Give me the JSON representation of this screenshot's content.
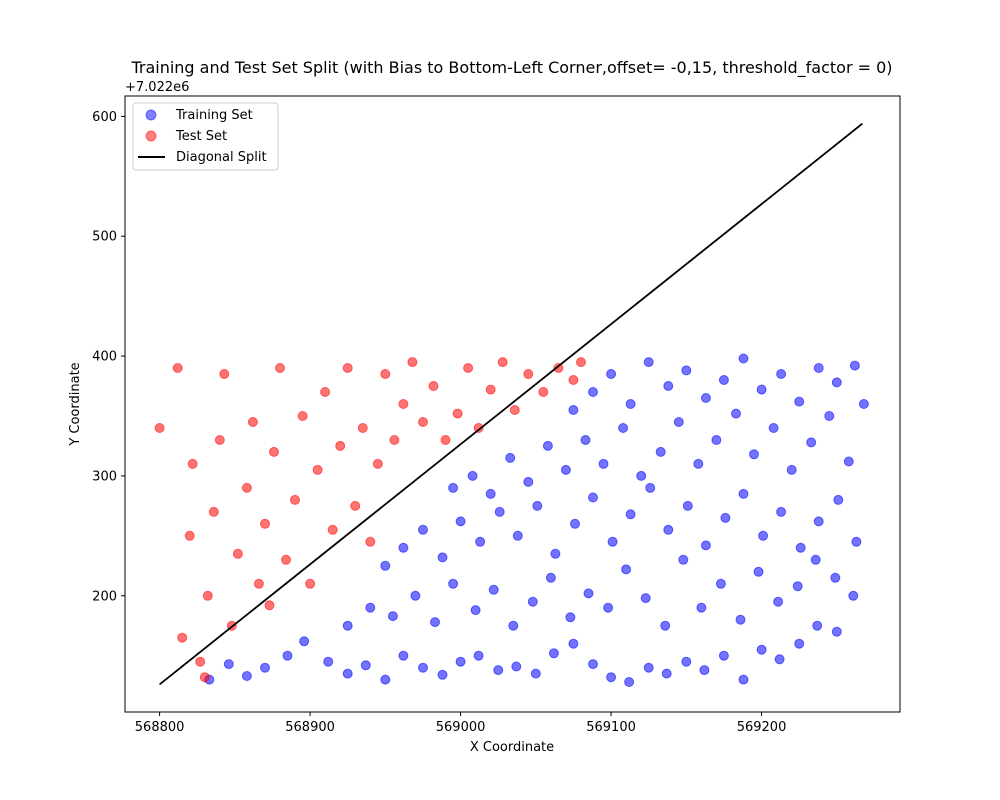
{
  "chart_data": {
    "type": "scatter",
    "title": "Training and Test Set Split (with Bias to Bottom-Left Corner,offset= -0,15, threshold_factor = 0)",
    "xlabel": "X Coordinate",
    "ylabel": "Y Coordinate",
    "y_offset_label": "+7.022e6",
    "y_offset": 7022000,
    "xlim": [
      568777,
      569292
    ],
    "ylim": [
      7022103,
      7022617
    ],
    "x_ticks": [
      568800,
      568900,
      569000,
      569100,
      569200
    ],
    "x_tick_labels": [
      "568800",
      "568900",
      "569000",
      "569100",
      "569200"
    ],
    "y_ticks": [
      200,
      300,
      400,
      500,
      600
    ],
    "y_tick_labels": [
      "200",
      "300",
      "400",
      "500",
      "600"
    ],
    "grid": false,
    "legend_position": "top-left",
    "colors": {
      "training": "#0000ff",
      "test": "#ff0000",
      "diagonal": "#000000"
    },
    "series": [
      {
        "name": "Training Set",
        "kind": "scatter",
        "points": [
          [
            568833,
            7022130
          ],
          [
            568846,
            7022143
          ],
          [
            568858,
            7022133
          ],
          [
            568870,
            7022140
          ],
          [
            568885,
            7022150
          ],
          [
            568896,
            7022162
          ],
          [
            568912,
            7022145
          ],
          [
            568925,
            7022135
          ],
          [
            568937,
            7022142
          ],
          [
            568950,
            7022130
          ],
          [
            568962,
            7022150
          ],
          [
            568975,
            7022140
          ],
          [
            568988,
            7022134
          ],
          [
            569000,
            7022145
          ],
          [
            569012,
            7022150
          ],
          [
            569025,
            7022138
          ],
          [
            569037,
            7022141
          ],
          [
            569050,
            7022135
          ],
          [
            569062,
            7022152
          ],
          [
            569075,
            7022160
          ],
          [
            569088,
            7022143
          ],
          [
            569100,
            7022132
          ],
          [
            569112,
            7022128
          ],
          [
            569125,
            7022140
          ],
          [
            569137,
            7022135
          ],
          [
            569150,
            7022145
          ],
          [
            569162,
            7022138
          ],
          [
            569175,
            7022150
          ],
          [
            569188,
            7022130
          ],
          [
            569200,
            7022155
          ],
          [
            569212,
            7022147
          ],
          [
            569225,
            7022160
          ],
          [
            569237,
            7022175
          ],
          [
            569250,
            7022170
          ],
          [
            568925,
            7022175
          ],
          [
            568940,
            7022190
          ],
          [
            568955,
            7022183
          ],
          [
            568970,
            7022200
          ],
          [
            568983,
            7022178
          ],
          [
            568995,
            7022210
          ],
          [
            569010,
            7022188
          ],
          [
            569022,
            7022205
          ],
          [
            569035,
            7022175
          ],
          [
            569048,
            7022195
          ],
          [
            569060,
            7022215
          ],
          [
            569073,
            7022182
          ],
          [
            569085,
            7022202
          ],
          [
            569098,
            7022190
          ],
          [
            569110,
            7022222
          ],
          [
            569123,
            7022198
          ],
          [
            569136,
            7022175
          ],
          [
            569148,
            7022230
          ],
          [
            569160,
            7022190
          ],
          [
            569173,
            7022210
          ],
          [
            569186,
            7022180
          ],
          [
            569198,
            7022220
          ],
          [
            569211,
            7022195
          ],
          [
            569224,
            7022208
          ],
          [
            569236,
            7022230
          ],
          [
            569249,
            7022215
          ],
          [
            569261,
            7022200
          ],
          [
            568950,
            7022225
          ],
          [
            568962,
            7022240
          ],
          [
            568975,
            7022255
          ],
          [
            568988,
            7022232
          ],
          [
            569000,
            7022262
          ],
          [
            569013,
            7022245
          ],
          [
            569026,
            7022270
          ],
          [
            569038,
            7022250
          ],
          [
            569051,
            7022275
          ],
          [
            569063,
            7022235
          ],
          [
            569076,
            7022260
          ],
          [
            569088,
            7022282
          ],
          [
            569101,
            7022245
          ],
          [
            569113,
            7022268
          ],
          [
            569126,
            7022290
          ],
          [
            569138,
            7022255
          ],
          [
            569151,
            7022275
          ],
          [
            569163,
            7022242
          ],
          [
            569176,
            7022265
          ],
          [
            569188,
            7022285
          ],
          [
            569201,
            7022250
          ],
          [
            569213,
            7022270
          ],
          [
            569226,
            7022240
          ],
          [
            569238,
            7022262
          ],
          [
            569251,
            7022280
          ],
          [
            569263,
            7022245
          ],
          [
            568995,
            7022290
          ],
          [
            569008,
            7022300
          ],
          [
            569020,
            7022285
          ],
          [
            569033,
            7022315
          ],
          [
            569045,
            7022295
          ],
          [
            569058,
            7022325
          ],
          [
            569070,
            7022305
          ],
          [
            569083,
            7022330
          ],
          [
            569095,
            7022310
          ],
          [
            569108,
            7022340
          ],
          [
            569120,
            7022300
          ],
          [
            569133,
            7022320
          ],
          [
            569145,
            7022345
          ],
          [
            569158,
            7022310
          ],
          [
            569170,
            7022330
          ],
          [
            569183,
            7022352
          ],
          [
            569195,
            7022318
          ],
          [
            569208,
            7022340
          ],
          [
            569220,
            7022305
          ],
          [
            569233,
            7022328
          ],
          [
            569245,
            7022350
          ],
          [
            569258,
            7022312
          ],
          [
            569075,
            7022355
          ],
          [
            569088,
            7022370
          ],
          [
            569100,
            7022385
          ],
          [
            569113,
            7022360
          ],
          [
            569125,
            7022395
          ],
          [
            569138,
            7022375
          ],
          [
            569150,
            7022388
          ],
          [
            569163,
            7022365
          ],
          [
            569175,
            7022380
          ],
          [
            569188,
            7022398
          ],
          [
            569200,
            7022372
          ],
          [
            569213,
            7022385
          ],
          [
            569225,
            7022362
          ],
          [
            569238,
            7022390
          ],
          [
            569250,
            7022378
          ],
          [
            569262,
            7022392
          ],
          [
            569268,
            7022360
          ]
        ]
      },
      {
        "name": "Test Set",
        "kind": "scatter",
        "points": [
          [
            568800,
            7022340
          ],
          [
            568812,
            7022390
          ],
          [
            568815,
            7022165
          ],
          [
            568820,
            7022250
          ],
          [
            568822,
            7022310
          ],
          [
            568827,
            7022145
          ],
          [
            568830,
            7022132
          ],
          [
            568832,
            7022200
          ],
          [
            568836,
            7022270
          ],
          [
            568840,
            7022330
          ],
          [
            568843,
            7022385
          ],
          [
            568848,
            7022175
          ],
          [
            568852,
            7022235
          ],
          [
            568858,
            7022290
          ],
          [
            568862,
            7022345
          ],
          [
            568866,
            7022210
          ],
          [
            568870,
            7022260
          ],
          [
            568873,
            7022192
          ],
          [
            568876,
            7022320
          ],
          [
            568880,
            7022390
          ],
          [
            568884,
            7022230
          ],
          [
            568890,
            7022280
          ],
          [
            568895,
            7022350
          ],
          [
            568900,
            7022210
          ],
          [
            568905,
            7022305
          ],
          [
            568910,
            7022370
          ],
          [
            568915,
            7022255
          ],
          [
            568920,
            7022325
          ],
          [
            568925,
            7022390
          ],
          [
            568930,
            7022275
          ],
          [
            568935,
            7022340
          ],
          [
            568940,
            7022245
          ],
          [
            568945,
            7022310
          ],
          [
            568950,
            7022385
          ],
          [
            568956,
            7022330
          ],
          [
            568962,
            7022360
          ],
          [
            568968,
            7022395
          ],
          [
            568975,
            7022345
          ],
          [
            568982,
            7022375
          ],
          [
            568990,
            7022330
          ],
          [
            568998,
            7022352
          ],
          [
            569005,
            7022390
          ],
          [
            569012,
            7022340
          ],
          [
            569020,
            7022372
          ],
          [
            569028,
            7022395
          ],
          [
            569036,
            7022355
          ],
          [
            569045,
            7022385
          ],
          [
            569055,
            7022370
          ],
          [
            569065,
            7022390
          ],
          [
            569075,
            7022380
          ],
          [
            569080,
            7022395
          ]
        ]
      },
      {
        "name": "Diagonal Split",
        "kind": "line",
        "points": [
          [
            568800,
            7022126
          ],
          [
            569267,
            7022594
          ]
        ]
      }
    ]
  }
}
